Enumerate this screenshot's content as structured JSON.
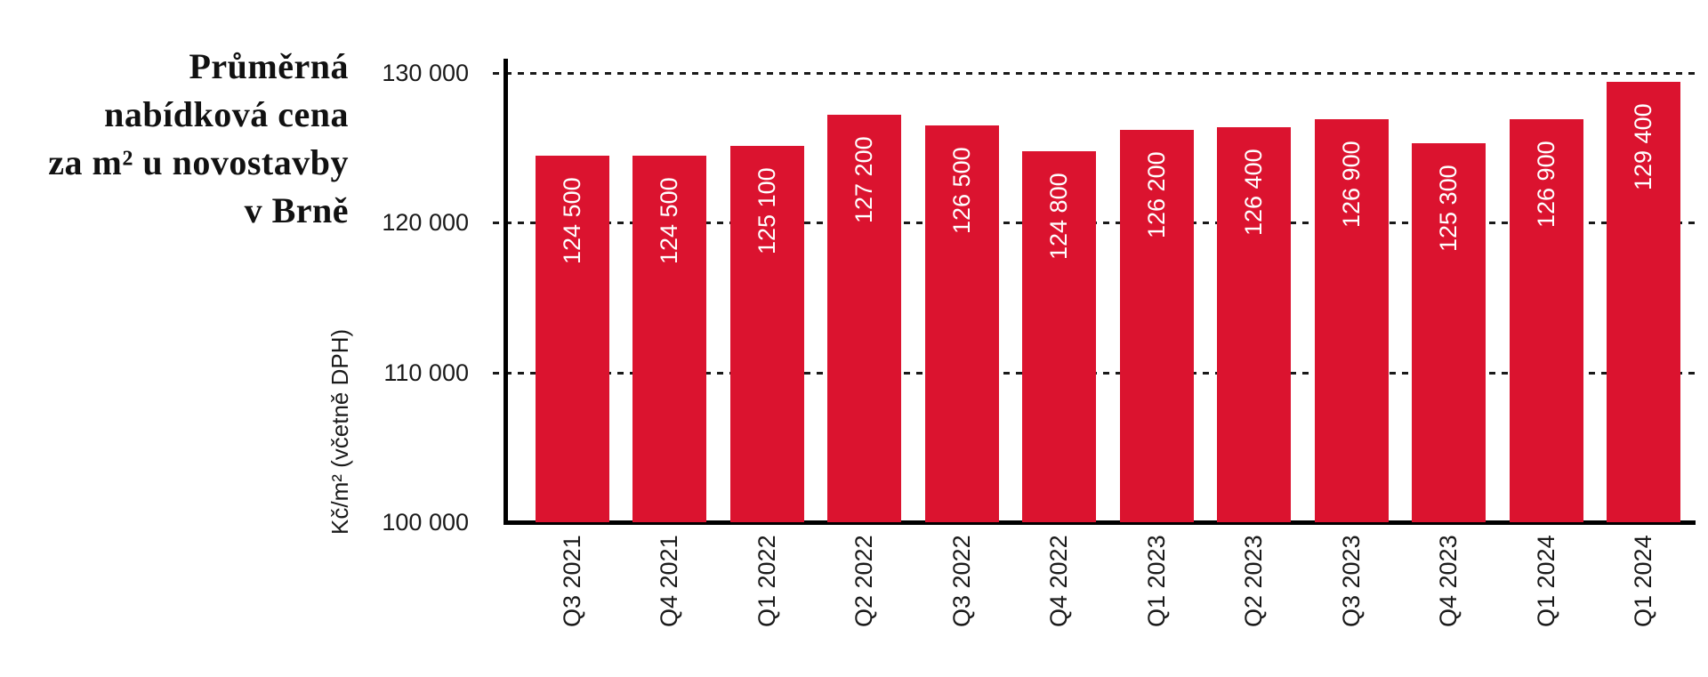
{
  "title": {
    "lines": [
      "Průměrná",
      "nabídková cena",
      "za m² u novostavby",
      "v Brně"
    ]
  },
  "chart_data": {
    "type": "bar",
    "title": "Průměrná nabídková cena za m² u novostavby v Brně",
    "ylabel": "Kč/m² (včetně DPH)",
    "xlabel": "",
    "categories": [
      "Q3 2021",
      "Q4 2021",
      "Q1 2022",
      "Q2 2022",
      "Q3 2022",
      "Q4 2022",
      "Q1 2023",
      "Q2 2023",
      "Q3 2023",
      "Q4 2023",
      "Q1 2024",
      "Q1 2024"
    ],
    "values": [
      124500,
      124500,
      125100,
      127200,
      126500,
      124800,
      126200,
      126400,
      126900,
      125300,
      126900,
      129400
    ],
    "value_labels": [
      "124 500",
      "124 500",
      "125 100",
      "127 200",
      "126 500",
      "124 800",
      "126 200",
      "126 400",
      "126 900",
      "125 300",
      "126 900",
      "129 400"
    ],
    "yticks": [
      {
        "value": 100000,
        "label": "100 000"
      },
      {
        "value": 110000,
        "label": "110 000"
      },
      {
        "value": 120000,
        "label": "120 000"
      },
      {
        "value": 130000,
        "label": "130 000"
      }
    ],
    "ylim": [
      100000,
      130000
    ],
    "grid": "horizontal-dashed",
    "legend": "none",
    "bar_color": "#DB132F",
    "value_label_color": "#FFFFFF",
    "axis_color": "#000000",
    "text_color": "#1a1a1a"
  }
}
